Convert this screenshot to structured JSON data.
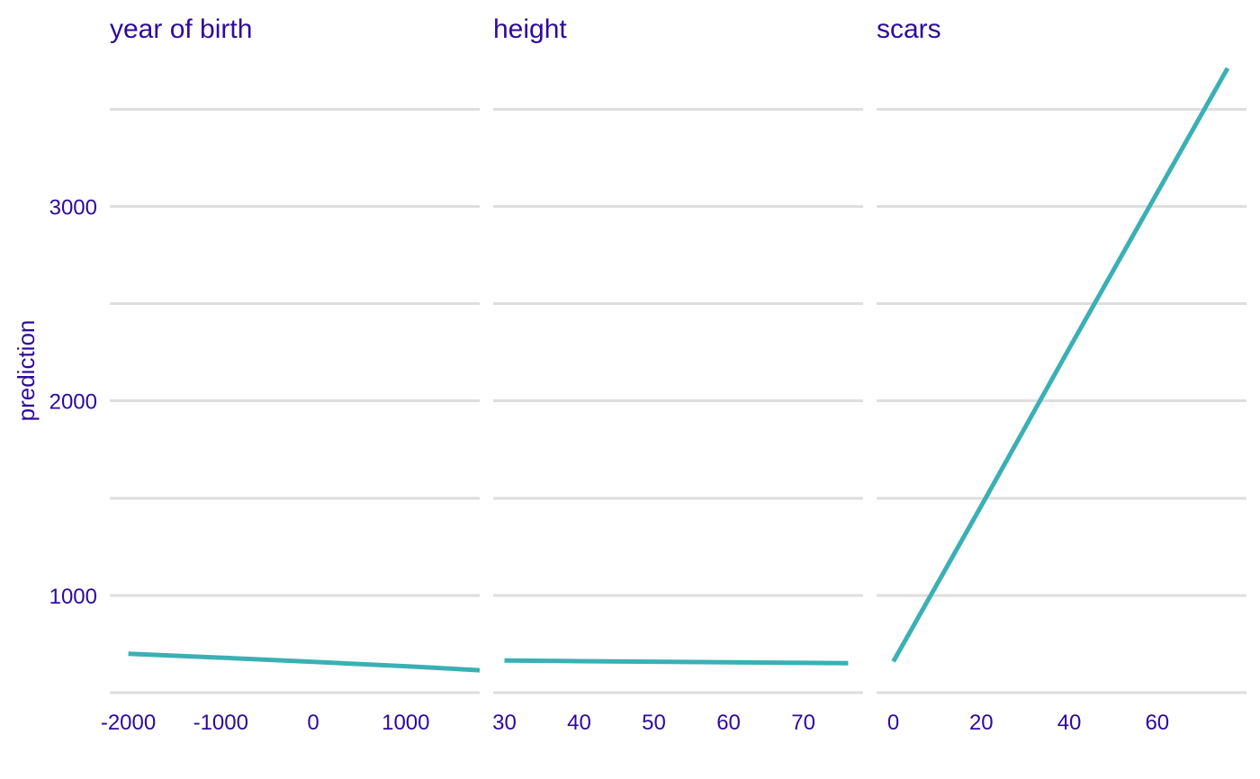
{
  "chart_data": {
    "type": "line",
    "ylabel": "prediction",
    "ylim": [
      500,
      3700
    ],
    "y_ticks": [
      1000,
      2000,
      3000
    ],
    "y_gridlines": [
      500,
      1000,
      1500,
      2000,
      2500,
      3000,
      3500
    ],
    "grid": true,
    "legend": "none",
    "colors": {
      "line": "#3bb0b4",
      "text": "#2e0a9c",
      "grid": "#dedede"
    },
    "facets": [
      {
        "title": "year  of  birth",
        "xlim": [
          -2200,
          1800
        ],
        "x_ticks": [
          -2000,
          -1000,
          0,
          1000
        ],
        "x": [
          -2000,
          -1000,
          0,
          1000,
          1800
        ],
        "y": [
          700,
          680,
          658,
          636,
          615
        ]
      },
      {
        "title": "height",
        "xlim": [
          28.5,
          78
        ],
        "x_ticks": [
          30,
          40,
          50,
          60,
          70
        ],
        "x": [
          30,
          40,
          50,
          60,
          70,
          76
        ],
        "y": [
          665,
          662,
          659,
          656,
          653,
          651
        ]
      },
      {
        "title": "scars",
        "xlim": [
          -3.8,
          80.3
        ],
        "x_ticks": [
          0,
          20,
          40,
          60
        ],
        "x": [
          0,
          20,
          40,
          60,
          76
        ],
        "y": [
          660,
          1460,
          2270,
          3070,
          3710
        ]
      }
    ]
  }
}
